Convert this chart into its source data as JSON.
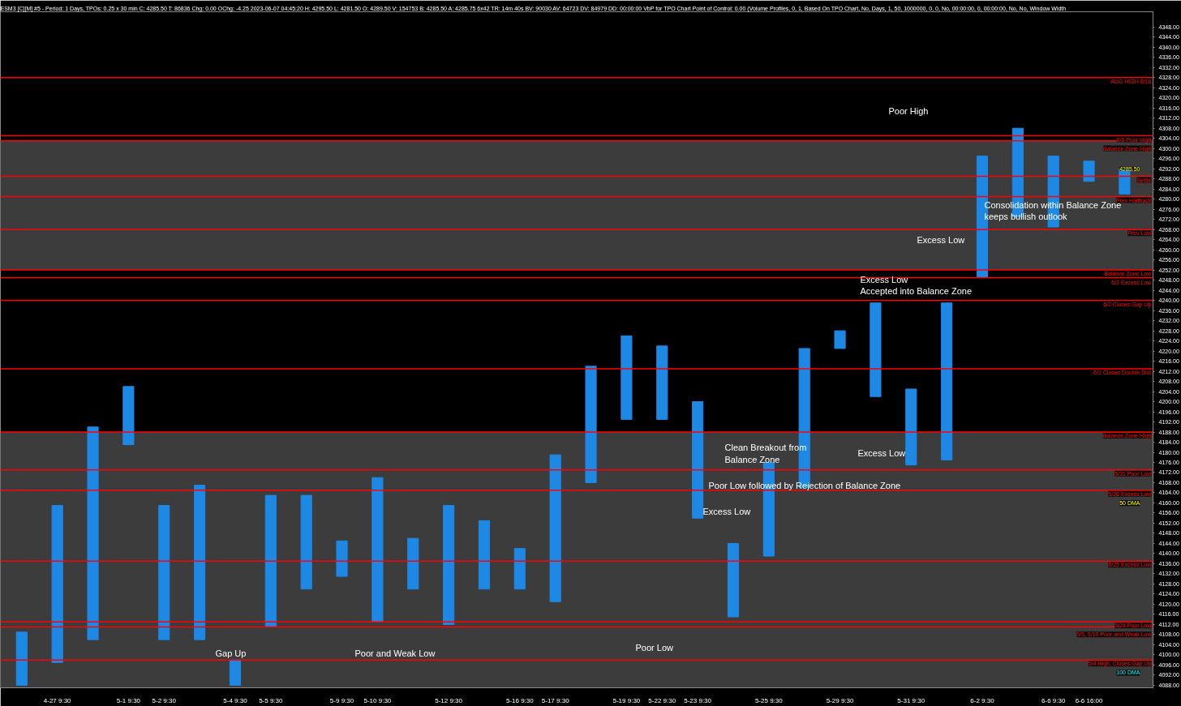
{
  "chart_data": {
    "type": "bar",
    "title": "ESM3 [C][M]  #5 - Period: 1 Days, TPOs: 0.25 x 30 min   C: 4285.50  T: 86836  Chg: 0.00  OChg: -4.25  2023-06-07 04:45:20 H: 4295.50 L: 4281.50 O: 4289.50 V: 154753 B: 4285.50 A: 4285.75 6x42 TR: 14m 40s BV: 90030 AV: 64723 DV: 84979 DD: 00:00:00 VbP for TPO Chart  Point of Control: 0.00  (Volume Profiles, 0, 1, Based On TPO Chart, No, Days, 1, 50, 1000000, 0, 0, No, 00:00:00, 0, 00:00:00, No, No, Window Width",
    "categories": [
      null,
      "4-27 9:30",
      null,
      "5-1 9:30",
      "5-2 9:30",
      null,
      "5-4 9:30",
      "5-5 9:30",
      null,
      "5-9 9:30",
      "5-10 9:30",
      null,
      "5-12 9:30",
      null,
      "5-16 9:30",
      "5-17 9:30",
      null,
      "5-19 9:30",
      "5-22 9:30",
      "5-23 9:30",
      null,
      "5-25 9:30",
      null,
      "5-29 9:30",
      null,
      "5-31 9:30",
      null,
      "6-2 9:30",
      null,
      "6-6 9:30",
      "6-6 16:00",
      null
    ],
    "base": [
      4088,
      4097,
      4106,
      4183,
      4106,
      4106,
      4088,
      4111,
      4126,
      4131,
      4113,
      4126,
      4112,
      4126,
      4126,
      4121,
      4168,
      4193,
      4193,
      4154,
      4115,
      4139,
      4166,
      4221,
      4202,
      4175,
      4177,
      4249,
      4273,
      4269,
      4287,
      4282
    ],
    "values": [
      21,
      62,
      84,
      23,
      53,
      61,
      10,
      52,
      37,
      14,
      57,
      20,
      47,
      27,
      16,
      58,
      46,
      33,
      29,
      46,
      29,
      37,
      55,
      7,
      37,
      30,
      62,
      48,
      35,
      28,
      8,
      10
    ],
    "color": "#1e88e5",
    "ylim": [
      4087,
      4354
    ],
    "yticks": [
      {
        "value": 4088,
        "label": "4088.00"
      },
      {
        "value": 4092,
        "label": "4092.00"
      },
      {
        "value": 4096,
        "label": "4096.00"
      },
      {
        "value": 4100,
        "label": "4100.00"
      },
      {
        "value": 4104,
        "label": "4104.00"
      },
      {
        "value": 4108,
        "label": "4108.00"
      },
      {
        "value": 4112,
        "label": "4112.00"
      },
      {
        "value": 4116,
        "label": "4116.00"
      },
      {
        "value": 4120,
        "label": "4120.00"
      },
      {
        "value": 4124,
        "label": "4124.00"
      },
      {
        "value": 4128,
        "label": "4128.00"
      },
      {
        "value": 4132,
        "label": "4132.00"
      },
      {
        "value": 4136,
        "label": "4136.00"
      },
      {
        "value": 4140,
        "label": "4140.00"
      },
      {
        "value": 4144,
        "label": "4144.00"
      },
      {
        "value": 4148,
        "label": "4148.00"
      },
      {
        "value": 4152,
        "label": "4152.00"
      },
      {
        "value": 4156,
        "label": "4156.00"
      },
      {
        "value": 4160,
        "label": "4160.00"
      },
      {
        "value": 4164,
        "label": "4164.00"
      },
      {
        "value": 4168,
        "label": "4168.00"
      },
      {
        "value": 4172,
        "label": "4172.00"
      },
      {
        "value": 4176,
        "label": "4176.00"
      },
      {
        "value": 4180,
        "label": "4180.00"
      },
      {
        "value": 4184,
        "label": "4184.00"
      },
      {
        "value": 4188,
        "label": "4188.00"
      },
      {
        "value": 4192,
        "label": "4192.00"
      },
      {
        "value": 4196,
        "label": "4196.00"
      },
      {
        "value": 4200,
        "label": "4200.00"
      },
      {
        "value": 4204,
        "label": "4204.00"
      },
      {
        "value": 4208,
        "label": "4208.00"
      },
      {
        "value": 4212,
        "label": "4212.00"
      },
      {
        "value": 4216,
        "label": "4216.00"
      },
      {
        "value": 4220,
        "label": "4220.00"
      },
      {
        "value": 4224,
        "label": "4224.00"
      },
      {
        "value": 4228,
        "label": "4228.00"
      },
      {
        "value": 4232,
        "label": "4232.00"
      },
      {
        "value": 4236,
        "label": "4236.00"
      },
      {
        "value": 4240,
        "label": "4240.00"
      },
      {
        "value": 4244,
        "label": "4244.00"
      },
      {
        "value": 4248,
        "label": "4248.00"
      },
      {
        "value": 4252,
        "label": "4252.00"
      },
      {
        "value": 4256,
        "label": "4256.00"
      },
      {
        "value": 4260,
        "label": "4260.00"
      },
      {
        "value": 4264,
        "label": "4264.00"
      },
      {
        "value": 4268,
        "label": "4268.00"
      },
      {
        "value": 4272,
        "label": "4272.00"
      },
      {
        "value": 4276,
        "label": "4276.00"
      },
      {
        "value": 4280,
        "label": "4280.00"
      },
      {
        "value": 4284,
        "label": "4284.00"
      },
      {
        "value": 4288,
        "label": "4288.00"
      },
      {
        "value": 4292,
        "label": "4292.00"
      },
      {
        "value": 4296,
        "label": "4296.00"
      },
      {
        "value": 4300,
        "label": "4300.00"
      },
      {
        "value": 4304,
        "label": "4304.00"
      },
      {
        "value": 4308,
        "label": "4308.00"
      },
      {
        "value": 4312,
        "label": "4312.00"
      },
      {
        "value": 4316,
        "label": "4316.00"
      },
      {
        "value": 4320,
        "label": "4320.00"
      },
      {
        "value": 4324,
        "label": "4324.00"
      },
      {
        "value": 4328,
        "label": "4328.00"
      },
      {
        "value": 4332,
        "label": "4332.00"
      },
      {
        "value": 4336,
        "label": "4336.00"
      },
      {
        "value": 4340,
        "label": "4340.00"
      },
      {
        "value": 4344,
        "label": "4344.00"
      },
      {
        "value": 4348,
        "label": "4348.00"
      }
    ],
    "bands": [
      {
        "axis": "y",
        "from": 4252,
        "to": 4303,
        "color": "#3c3c3c"
      },
      {
        "axis": "y",
        "from": 4087,
        "to": 4188,
        "color": "#3c3c3c"
      }
    ],
    "ref_lines": [
      {
        "axis": "y",
        "value": 4328,
        "label": "AUG HIGH 8/16",
        "color": "#ff0000"
      },
      {
        "axis": "y",
        "value": 4305,
        "label": "6/5 Poor High",
        "color": "#ff0000"
      },
      {
        "axis": "y",
        "value": 4303,
        "label": "Balance Zone High",
        "color": "#ff0000"
      },
      {
        "axis": "y",
        "value": 4289,
        "label": "Settle",
        "color": "#ff0000"
      },
      {
        "axis": "y",
        "value": 4281,
        "label": "Prev Halfback",
        "color": "#ff0000"
      },
      {
        "axis": "y",
        "value": 4268,
        "label": "Prev Low",
        "color": "#ff0000"
      },
      {
        "axis": "y",
        "value": 4252,
        "label": "Balance Zone Low",
        "color": "#ff0000"
      },
      {
        "axis": "y",
        "value": 4249,
        "label": "6/2 Excess Low",
        "color": "#ff0000"
      },
      {
        "axis": "y",
        "value": 4240,
        "label": "6/2 Closes Gap Up",
        "color": "#ff0000"
      },
      {
        "axis": "y",
        "value": 4213,
        "label": "6/1 Closes Double Dist",
        "color": "#ff0000"
      },
      {
        "axis": "y",
        "value": 4188,
        "label": "Balance Zone High",
        "color": "#ff0000"
      },
      {
        "axis": "y",
        "value": 4173,
        "label": "5/31 Poor Low",
        "color": "#ff0000"
      },
      {
        "axis": "y",
        "value": 4165,
        "label": "5/26 Excess Low",
        "color": "#ff0000"
      },
      {
        "axis": "y",
        "value": 4137,
        "label": "5/25 Excess Low",
        "color": "#ff0000"
      },
      {
        "axis": "y",
        "value": 4113,
        "label": "5/24 Poor Low",
        "color": "#ff0000"
      },
      {
        "axis": "y",
        "value": 4111,
        "label": "5/5, 5/10 Poor and Weak Low",
        "color": "#ff0000"
      },
      {
        "axis": "y",
        "value": 4098,
        "label": "5/4 High, Closes Gap Up",
        "color": "#ff0000"
      }
    ],
    "annotations": [
      "Poor High",
      "Consolidation within Balance Zone\nkeeps bullish outlook",
      "Excess Low",
      "Excess Low\nAccepted into Balance Zone",
      "Clean Breakout from\nBalance Zone",
      "Excess Low",
      "Poor Low followed by Rejection of Balance Zone",
      "Excess Low",
      "Gap Up",
      "Poor and Weak Low",
      "Poor Low",
      "50 DMA",
      "100 DMA",
      "4285.50"
    ]
  }
}
